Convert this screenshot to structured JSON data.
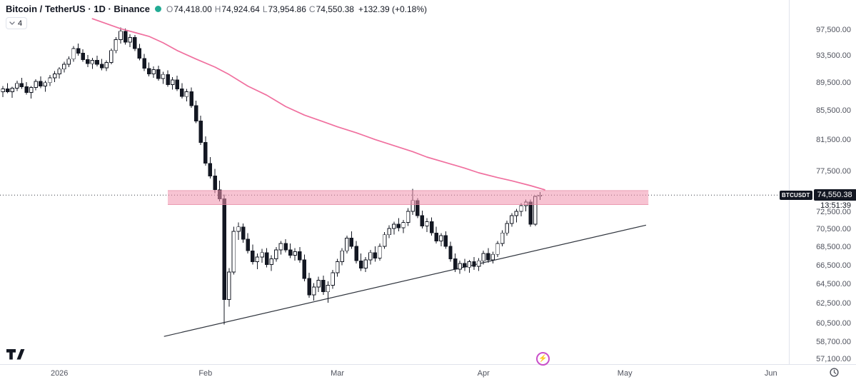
{
  "header": {
    "symbol_title": "Bitcoin / TetherUS · 1D · Binance",
    "ohlc": {
      "o_label": "O",
      "o": "74,418.00",
      "h_label": "H",
      "h": "74,924.64",
      "l_label": "L",
      "l": "73,954.86",
      "c_label": "C",
      "c": "74,550.38",
      "change": "+132.39 (+0.18%)"
    },
    "indicators_badge": "4"
  },
  "price_axis": {
    "labels": [
      "97,500.00",
      "93,500.00",
      "89,500.00",
      "85,500.00",
      "81,500.00",
      "77,500.00",
      "72,500.00",
      "70,500.00",
      "68,500.00",
      "66,500.00",
      "64,500.00",
      "62,500.00",
      "60,500.00",
      "58,700.00",
      "57,100.00"
    ],
    "price_label": {
      "symbol": "BTCUSDT",
      "price": "74,550.38",
      "countdown": "13:51:39"
    }
  },
  "time_axis": {
    "labels": [
      {
        "label": "2026",
        "i": 12
      },
      {
        "label": "Feb",
        "i": 43
      },
      {
        "label": "Mar",
        "i": 71
      },
      {
        "label": "Apr",
        "i": 102
      },
      {
        "label": "May",
        "i": 132
      },
      {
        "label": "Jun",
        "i": 163
      }
    ]
  },
  "colors": {
    "up_fill": "#ffffff",
    "down_fill": "#131722",
    "candle_stroke": "#131722",
    "ma_pink": "#f0709f",
    "zone_fill": "#f191ad",
    "zone_edge": "#e4839f",
    "trendline": "#2f343d",
    "dotted_line": "#131722",
    "status_dot": "#22ab94"
  },
  "chart_data": {
    "type": "candlestick",
    "title": "Bitcoin / TetherUS · 1D · Binance",
    "symbol": "BTCUSDT",
    "interval": "1D",
    "exchange": "Binance",
    "scale": "log",
    "ylim": [
      57100,
      99500
    ],
    "y_ticks": [
      97500,
      93500,
      89500,
      85500,
      81500,
      77500,
      72500,
      70500,
      68500,
      66500,
      64500,
      62500,
      60500,
      58700,
      57100
    ],
    "x_tick_labels": [
      "2026",
      "Feb",
      "Mar",
      "Apr",
      "May",
      "Jun"
    ],
    "current_price": 74550.38,
    "current_ohlc": {
      "o": 74418.0,
      "h": 74924.64,
      "l": 73954.86,
      "c": 74550.38,
      "change": 132.39,
      "change_pct": 0.18
    },
    "candles": [
      [
        88200,
        89000,
        87400,
        88600
      ],
      [
        88600,
        89400,
        88000,
        88200
      ],
      [
        88200,
        88900,
        87300,
        88700
      ],
      [
        88700,
        89800,
        88300,
        89400
      ],
      [
        89400,
        90200,
        88600,
        88900
      ],
      [
        88900,
        89600,
        87800,
        88100
      ],
      [
        88100,
        89000,
        87200,
        88800
      ],
      [
        88800,
        90000,
        88400,
        89700
      ],
      [
        89700,
        90400,
        88700,
        89000
      ],
      [
        89000,
        89800,
        88200,
        89500
      ],
      [
        89500,
        90600,
        89000,
        90200
      ],
      [
        90200,
        91200,
        89600,
        90800
      ],
      [
        90800,
        91800,
        90100,
        91500
      ],
      [
        91500,
        92600,
        91000,
        92200
      ],
      [
        92200,
        93400,
        91800,
        93000
      ],
      [
        93000,
        95000,
        92600,
        94600
      ],
      [
        94600,
        95400,
        93500,
        93900
      ],
      [
        93900,
        94500,
        92600,
        92900
      ],
      [
        92900,
        93600,
        91800,
        92300
      ],
      [
        92300,
        93200,
        91500,
        92800
      ],
      [
        92800,
        93500,
        91900,
        92200
      ],
      [
        92200,
        93000,
        91300,
        91700
      ],
      [
        91700,
        92800,
        91200,
        92500
      ],
      [
        92500,
        94600,
        92200,
        94300
      ],
      [
        94300,
        96400,
        93900,
        96000
      ],
      [
        96000,
        97900,
        95400,
        97300
      ],
      [
        97300,
        97700,
        95200,
        95600
      ],
      [
        95600,
        96800,
        94800,
        96300
      ],
      [
        96300,
        96700,
        94200,
        94600
      ],
      [
        94600,
        95300,
        92800,
        93100
      ],
      [
        93100,
        93800,
        91200,
        91600
      ],
      [
        91600,
        92500,
        90400,
        90800
      ],
      [
        90800,
        91900,
        90200,
        91400
      ],
      [
        91400,
        92000,
        89800,
        90100
      ],
      [
        90100,
        91100,
        89300,
        90700
      ],
      [
        90700,
        91300,
        88900,
        89200
      ],
      [
        89200,
        90300,
        88500,
        89900
      ],
      [
        89900,
        90500,
        88300,
        88600
      ],
      [
        88600,
        89400,
        87200,
        87500
      ],
      [
        87500,
        88600,
        86800,
        88200
      ],
      [
        88200,
        88800,
        85900,
        86200
      ],
      [
        86200,
        86900,
        83800,
        84100
      ],
      [
        84100,
        84800,
        80900,
        81200
      ],
      [
        81200,
        82000,
        78200,
        78500
      ],
      [
        78500,
        79300,
        76600,
        76900
      ],
      [
        76900,
        77800,
        74800,
        75200
      ],
      [
        75200,
        76300,
        73800,
        74100
      ],
      [
        74100,
        74600,
        60400,
        62900
      ],
      [
        62900,
        66200,
        62200,
        65800
      ],
      [
        65800,
        70800,
        65500,
        70300
      ],
      [
        70300,
        71300,
        69300,
        70800
      ],
      [
        70800,
        71200,
        69000,
        69400
      ],
      [
        69400,
        70100,
        67800,
        68100
      ],
      [
        68100,
        68800,
        66600,
        66900
      ],
      [
        66900,
        67800,
        66100,
        67400
      ],
      [
        67400,
        68300,
        66800,
        67900
      ],
      [
        67900,
        68400,
        66300,
        66600
      ],
      [
        66600,
        67600,
        65900,
        67200
      ],
      [
        67200,
        68500,
        66900,
        68200
      ],
      [
        68200,
        69200,
        67700,
        68900
      ],
      [
        68900,
        69400,
        67900,
        68200
      ],
      [
        68200,
        68900,
        67300,
        67600
      ],
      [
        67600,
        68400,
        67000,
        68000
      ],
      [
        68000,
        68500,
        66800,
        67100
      ],
      [
        67100,
        67700,
        64800,
        65100
      ],
      [
        65100,
        65700,
        63100,
        63400
      ],
      [
        63400,
        64600,
        62800,
        64200
      ],
      [
        64200,
        65300,
        63700,
        64900
      ],
      [
        64900,
        65400,
        63400,
        63700
      ],
      [
        63700,
        64800,
        62600,
        64400
      ],
      [
        64400,
        66000,
        64000,
        65700
      ],
      [
        65700,
        67200,
        65300,
        66900
      ],
      [
        66900,
        68400,
        66500,
        68100
      ],
      [
        68100,
        69800,
        67800,
        69500
      ],
      [
        69500,
        70300,
        68300,
        68600
      ],
      [
        68600,
        69200,
        66700,
        67000
      ],
      [
        67000,
        67800,
        65900,
        66200
      ],
      [
        66200,
        67400,
        65800,
        67100
      ],
      [
        67100,
        68200,
        66600,
        67900
      ],
      [
        67900,
        68600,
        66900,
        67300
      ],
      [
        67300,
        68900,
        67000,
        68600
      ],
      [
        68600,
        70200,
        68300,
        69900
      ],
      [
        69900,
        71000,
        69500,
        70600
      ],
      [
        70600,
        71400,
        69900,
        71100
      ],
      [
        71100,
        71800,
        70300,
        70700
      ],
      [
        70700,
        71600,
        70100,
        71300
      ],
      [
        71300,
        73000,
        70900,
        72600
      ],
      [
        72600,
        75300,
        72200,
        73900
      ],
      [
        73900,
        74200,
        71800,
        72100
      ],
      [
        72100,
        72700,
        70600,
        70900
      ],
      [
        70900,
        71800,
        70200,
        71400
      ],
      [
        71400,
        71900,
        69800,
        70100
      ],
      [
        70100,
        70800,
        68900,
        69200
      ],
      [
        69200,
        70100,
        68600,
        69800
      ],
      [
        69800,
        70300,
        68300,
        68600
      ],
      [
        68600,
        69100,
        66900,
        67200
      ],
      [
        67200,
        67800,
        65800,
        66100
      ],
      [
        66100,
        67000,
        65600,
        66700
      ],
      [
        66700,
        67200,
        65900,
        66300
      ],
      [
        66300,
        67100,
        65700,
        66900
      ],
      [
        66900,
        67400,
        66000,
        66400
      ],
      [
        66400,
        67300,
        65900,
        67000
      ],
      [
        67000,
        68100,
        66600,
        67800
      ],
      [
        67800,
        68400,
        66800,
        67100
      ],
      [
        67100,
        68000,
        66700,
        67700
      ],
      [
        67700,
        69200,
        67400,
        68900
      ],
      [
        68900,
        70400,
        68600,
        70100
      ],
      [
        70100,
        71500,
        69800,
        71200
      ],
      [
        71200,
        72400,
        70800,
        72100
      ],
      [
        72100,
        72900,
        71300,
        72600
      ],
      [
        72600,
        73600,
        72000,
        73300
      ],
      [
        73300,
        74000,
        72600,
        73700
      ],
      [
        73700,
        74000,
        70800,
        71100
      ],
      [
        71100,
        74500,
        70900,
        74400
      ],
      [
        74418,
        74924.64,
        73954.86,
        74550.38
      ]
    ],
    "ma_line": {
      "name": "moving-average",
      "points": [
        [
          19,
          99300
        ],
        [
          22,
          98500
        ],
        [
          25,
          97700
        ],
        [
          28,
          97100
        ],
        [
          31,
          96500
        ],
        [
          34,
          95500
        ],
        [
          37,
          94300
        ],
        [
          41,
          93000
        ],
        [
          45,
          91800
        ],
        [
          48,
          90700
        ],
        [
          52,
          89000
        ],
        [
          56,
          87700
        ],
        [
          60,
          86100
        ],
        [
          64,
          84900
        ],
        [
          68,
          84000
        ],
        [
          71,
          83300
        ],
        [
          75,
          82500
        ],
        [
          79,
          81600
        ],
        [
          83,
          80800
        ],
        [
          87,
          80000
        ],
        [
          90,
          79300
        ],
        [
          94,
          78600
        ],
        [
          98,
          77900
        ],
        [
          101,
          77300
        ],
        [
          105,
          76700
        ],
        [
          108,
          76300
        ],
        [
          112,
          75700
        ],
        [
          115,
          75200
        ]
      ]
    },
    "zone": {
      "name": "resistance-zone",
      "price_top": 75100,
      "price_bottom": 73400,
      "i_start": 35,
      "i_end": 137
    },
    "trendline": {
      "name": "ascending-trendline",
      "from": [
        34.2,
        59250
      ],
      "to": [
        136.5,
        71000
      ]
    }
  }
}
